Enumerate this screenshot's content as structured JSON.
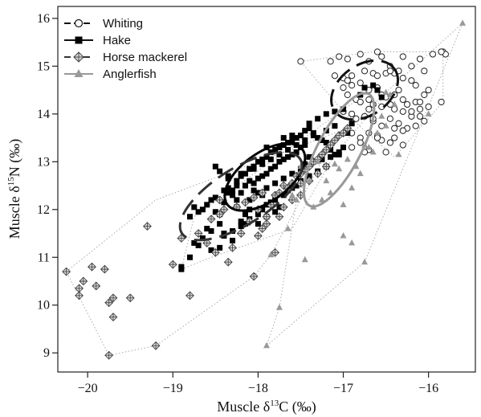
{
  "chart_data": {
    "type": "scatter",
    "xlabel": "Muscle δ13C (‰)",
    "xlabel_parts": {
      "prefix": "Muscle δ",
      "sup": "13",
      "suffix": "C (‰)"
    },
    "ylabel": "Muscle δ15N (‰)",
    "ylabel_parts": {
      "prefix": "Muscle δ",
      "sup": "15",
      "suffix": "N (‰)"
    },
    "xlim": [
      -20.35,
      -15.45
    ],
    "ylim": [
      8.6,
      16.25
    ],
    "xticks": [
      -20,
      -19,
      -18,
      -17,
      -16
    ],
    "xtick_labels": [
      "−20",
      "−19",
      "−18",
      "−17",
      "−16"
    ],
    "yticks": [
      9,
      10,
      11,
      12,
      13,
      14,
      15,
      16
    ],
    "ytick_labels": [
      "9",
      "10",
      "11",
      "12",
      "13",
      "14",
      "15",
      "16"
    ],
    "grid": false,
    "legend_position": "top-left",
    "colors": {
      "whiting": "#222222",
      "hake": "#000000",
      "horse_mackerel": "#555555",
      "anglerfish": "#999999",
      "hull": "#aaaaaa"
    },
    "series": [
      {
        "name": "Whiting",
        "marker": "open-circle",
        "ellipse": {
          "cx": -16.75,
          "cy": 14.5,
          "rx": 0.55,
          "ry": 0.38,
          "angle": 35,
          "style": "dashed",
          "color": "#111111"
        },
        "x": [
          -17.5,
          -17.15,
          -17.05,
          -16.95,
          -16.8,
          -16.7,
          -16.6,
          -16.55,
          -16.45,
          -16.4,
          -16.3,
          -16.2,
          -16.1,
          -16.05,
          -15.95,
          -15.85,
          -15.83,
          -15.85,
          -17.1,
          -17.0,
          -16.9,
          -16.75,
          -16.65,
          -16.6,
          -16.5,
          -16.45,
          -16.35,
          -16.3,
          -16.2,
          -16.15,
          -16.05,
          -16.0,
          -17.0,
          -16.9,
          -16.8,
          -16.7,
          -16.6,
          -16.55,
          -16.5,
          -16.4,
          -16.35,
          -16.3,
          -16.25,
          -16.15,
          -16.1,
          -16.95,
          -16.85,
          -16.8,
          -16.7,
          -16.65,
          -16.55,
          -16.45,
          -16.4,
          -16.3,
          -16.2,
          -16.1,
          -17.0,
          -16.9,
          -16.85,
          -16.75,
          -16.65,
          -16.55,
          -16.45,
          -16.35,
          -16.3,
          -16.25,
          -16.15,
          -16.05,
          -16.9,
          -16.8,
          -16.7,
          -16.6,
          -16.55,
          -16.45,
          -16.4,
          -16.3,
          -16.9,
          -16.8,
          -16.7,
          -16.6,
          -16.5,
          -16.4,
          -16.3,
          -16.2,
          -16.1,
          -16.0,
          -15.8,
          -15.85,
          -16.65,
          -16.75,
          -16.7,
          -16.95
        ],
        "y": [
          15.1,
          15.1,
          15.2,
          15.15,
          15.25,
          15.1,
          15.3,
          15.2,
          15.0,
          14.85,
          15.2,
          15.0,
          15.15,
          14.9,
          15.25,
          15.3,
          15.3,
          14.25,
          14.8,
          14.75,
          14.8,
          14.9,
          14.85,
          14.8,
          14.85,
          14.9,
          14.9,
          14.75,
          14.7,
          14.6,
          14.4,
          14.5,
          14.55,
          14.6,
          14.65,
          14.5,
          14.55,
          14.4,
          14.35,
          14.4,
          14.5,
          14.3,
          14.2,
          14.25,
          14.1,
          14.4,
          14.3,
          14.25,
          14.3,
          14.2,
          14.15,
          14.2,
          14.1,
          14.05,
          13.95,
          13.95,
          14.05,
          14.0,
          13.9,
          13.95,
          13.85,
          13.75,
          13.9,
          13.8,
          13.65,
          13.7,
          13.75,
          13.85,
          13.6,
          13.5,
          13.6,
          13.55,
          13.45,
          13.4,
          13.5,
          13.35,
          13.3,
          13.4,
          13.25,
          13.5,
          13.2,
          13.7,
          13.65,
          14.05,
          14.25,
          14.15,
          15.25,
          15.3,
          13.9,
          13.2,
          14.1,
          14.7
        ]
      },
      {
        "name": "Hake",
        "marker": "filled-square",
        "ellipse": {
          "cx": -17.92,
          "cy": 12.68,
          "rx": 0.7,
          "ry": 0.36,
          "angle": 36,
          "style": "solid",
          "color": "#000000"
        },
        "x": [
          -18.9,
          -18.9,
          -18.8,
          -18.75,
          -18.7,
          -18.65,
          -18.6,
          -18.55,
          -18.5,
          -18.45,
          -18.4,
          -18.35,
          -18.3,
          -18.25,
          -18.2,
          -18.15,
          -18.1,
          -18.05,
          -18.0,
          -17.95,
          -17.9,
          -17.85,
          -17.8,
          -17.75,
          -17.7,
          -17.65,
          -17.6,
          -17.55,
          -17.5,
          -17.45,
          -17.4,
          -17.35,
          -17.3,
          -17.25,
          -17.2,
          -17.15,
          -17.1,
          -17.05,
          -17.0,
          -16.95,
          -16.9,
          -18.6,
          -18.55,
          -18.5,
          -18.45,
          -18.4,
          -18.35,
          -18.3,
          -18.25,
          -18.2,
          -18.15,
          -18.1,
          -18.05,
          -18.0,
          -17.95,
          -17.9,
          -17.85,
          -17.8,
          -17.75,
          -17.7,
          -17.65,
          -17.6,
          -17.55,
          -17.5,
          -17.45,
          -17.4,
          -18.45,
          -18.4,
          -18.3,
          -18.2,
          -18.15,
          -18.1,
          -18.0,
          -17.95,
          -17.9,
          -17.85,
          -17.8,
          -17.7,
          -17.65,
          -17.6,
          -17.55,
          -17.5,
          -17.4,
          -17.3,
          -17.2,
          -18.25,
          -18.1,
          -18.0,
          -17.9,
          -17.8,
          -17.7,
          -17.6,
          -17.5,
          -17.45,
          -17.35,
          -17.25,
          -17.15,
          -17.05,
          -18.35,
          -18.2,
          -18.05,
          -17.95,
          -17.85,
          -17.75,
          -17.65,
          -17.55,
          -17.45,
          -17.35,
          -17.2,
          -17.1,
          -18.7,
          -18.75,
          -18.8,
          -18.55,
          -18.65,
          -18.4,
          -18.3,
          -18.2,
          -18.15,
          -18.1,
          -18.0,
          -17.9,
          -17.8,
          -18.1,
          -17.9,
          -17.7,
          -17.6,
          -17.4,
          -17.3,
          -17.2,
          -17.1,
          -17.0,
          -16.8,
          -16.75,
          -16.6,
          -16.55,
          -16.65,
          -17.75,
          -17.85,
          -17.95,
          -18.05,
          -18.15,
          -18.25,
          -18.35,
          -18.45,
          -18.5
        ],
        "y": [
          10.8,
          10.75,
          11.85,
          12.05,
          11.95,
          12.0,
          11.6,
          11.55,
          11.95,
          11.7,
          12.15,
          12.35,
          12.4,
          12.5,
          12.7,
          12.75,
          12.85,
          12.9,
          13.0,
          13.05,
          13.1,
          13.2,
          13.25,
          13.3,
          13.35,
          13.4,
          13.45,
          13.5,
          13.55,
          13.65,
          13.7,
          13.6,
          13.5,
          13.45,
          13.4,
          13.25,
          13.15,
          13.2,
          13.3,
          13.6,
          13.8,
          12.1,
          12.2,
          12.25,
          11.9,
          12.4,
          12.45,
          12.3,
          12.2,
          12.35,
          12.5,
          12.6,
          12.55,
          12.65,
          12.7,
          12.75,
          12.85,
          12.9,
          13.0,
          13.05,
          13.1,
          13.15,
          13.2,
          13.3,
          13.35,
          13.1,
          11.2,
          11.5,
          11.55,
          11.65,
          11.7,
          11.8,
          11.9,
          12.0,
          12.1,
          12.15,
          12.2,
          12.3,
          12.4,
          12.45,
          12.5,
          12.6,
          12.7,
          12.8,
          12.9,
          12.05,
          12.2,
          12.35,
          12.45,
          12.55,
          12.65,
          12.75,
          12.85,
          12.95,
          13.0,
          13.05,
          13.1,
          13.15,
          12.65,
          12.75,
          12.85,
          12.95,
          13.05,
          13.15,
          13.25,
          13.35,
          13.45,
          13.55,
          13.65,
          13.75,
          11.25,
          11.3,
          11.0,
          11.15,
          11.4,
          11.45,
          11.35,
          11.75,
          11.9,
          12.0,
          11.7,
          11.85,
          11.95,
          12.85,
          13.3,
          13.5,
          13.55,
          13.8,
          13.9,
          14.0,
          14.05,
          14.1,
          14.4,
          14.55,
          14.5,
          14.35,
          14.6,
          12.05,
          12.15,
          12.3,
          12.4,
          12.5,
          12.6,
          12.7,
          12.8,
          12.9
        ]
      },
      {
        "name": "Horse mackerel",
        "marker": "crossed-diamond",
        "ellipse": {
          "cx": -18.2,
          "cy": 12.28,
          "rx": 1.05,
          "ry": 0.42,
          "angle": 32,
          "style": "dashed",
          "color": "#333333"
        },
        "x": [
          -20.25,
          -20.1,
          -20.1,
          -20.05,
          -19.95,
          -19.9,
          -19.8,
          -19.75,
          -19.7,
          -19.7,
          -19.5,
          -19.75,
          -19.2,
          -18.8,
          -19.0,
          -19.3,
          -18.9,
          -18.7,
          -18.6,
          -18.5,
          -18.35,
          -18.3,
          -18.2,
          -18.1,
          -18.0,
          -17.9,
          -17.85,
          -17.8,
          -17.75,
          -17.7,
          -17.6,
          -17.55,
          -17.5,
          -17.45,
          -17.4,
          -17.35,
          -17.3,
          -17.25,
          -17.2,
          -17.15,
          -17.1,
          -17.05,
          -17.0,
          -16.95,
          -18.55,
          -18.45,
          -18.4,
          -18.25,
          -18.15,
          -18.05,
          -17.95,
          -17.65,
          -17.5,
          -17.4,
          -17.3,
          -17.2,
          -18.0,
          -17.95,
          -17.9,
          -17.75,
          -17.7,
          -17.6,
          -17.5,
          -17.8,
          -18.05,
          -18.45
        ],
        "y": [
          10.7,
          10.2,
          10.35,
          10.5,
          10.8,
          10.4,
          10.75,
          10.05,
          10.15,
          9.75,
          10.15,
          8.95,
          9.15,
          10.2,
          10.85,
          11.65,
          11.4,
          11.5,
          11.3,
          11.1,
          10.9,
          11.2,
          11.5,
          11.75,
          12.0,
          11.85,
          12.1,
          12.3,
          12.35,
          12.5,
          12.55,
          12.7,
          12.75,
          12.85,
          12.9,
          13.0,
          13.05,
          13.15,
          13.25,
          13.35,
          13.45,
          13.55,
          13.6,
          13.7,
          11.8,
          11.9,
          12.0,
          12.05,
          12.15,
          12.25,
          12.35,
          12.45,
          12.55,
          12.6,
          12.75,
          12.9,
          11.45,
          11.6,
          11.7,
          11.85,
          12.05,
          12.2,
          12.3,
          11.1,
          10.6,
          12.2
        ]
      },
      {
        "name": "Anglerfish",
        "marker": "filled-triangle",
        "ellipse": {
          "cx": -17.05,
          "cy": 13.25,
          "rx": 0.95,
          "ry": 0.32,
          "angle": 62,
          "style": "solid",
          "color": "#999999"
        },
        "x": [
          -15.6,
          -16.0,
          -16.35,
          -16.75,
          -16.9,
          -17.0,
          -17.15,
          -17.1,
          -17.3,
          -17.4,
          -17.55,
          -17.65,
          -17.75,
          -17.9,
          -17.85,
          -17.6,
          -17.5,
          -17.2,
          -17.0,
          -16.9,
          -16.8,
          -16.7,
          -16.6,
          -16.55,
          -16.4,
          -16.45,
          -16.5,
          -17.25,
          -17.35,
          -17.45,
          -17.05,
          -16.95,
          -16.85,
          -16.75,
          -16.65,
          -16.5
        ],
        "y": [
          15.9,
          14.0,
          13.15,
          10.9,
          11.3,
          11.45,
          12.35,
          12.95,
          13.0,
          12.6,
          12.2,
          11.6,
          9.95,
          9.15,
          11.05,
          12.3,
          12.9,
          12.6,
          12.1,
          12.45,
          12.75,
          13.3,
          13.6,
          13.95,
          14.2,
          14.4,
          14.45,
          12.2,
          12.05,
          10.95,
          12.85,
          13.05,
          12.9,
          13.35,
          13.2,
          13.75
        ]
      }
    ],
    "hulls": [
      {
        "series": "Whiting",
        "x": [
          -17.5,
          -16.65,
          -15.83,
          -15.83,
          -16.4,
          -17.0
        ],
        "y": [
          15.1,
          15.3,
          15.3,
          14.25,
          13.1,
          14.05
        ]
      },
      {
        "series": "Hake",
        "x": [
          -18.9,
          -18.75,
          -16.6,
          -16.55,
          -17.1,
          -17.6,
          -18.55
        ],
        "y": [
          10.75,
          11.85,
          14.6,
          14.3,
          13.15,
          11.6,
          11.0
        ]
      },
      {
        "series": "Horse mackerel",
        "x": [
          -20.25,
          -19.2,
          -16.95,
          -17.15,
          -17.85,
          -18.05,
          -19.2,
          -19.75
        ],
        "y": [
          10.7,
          12.2,
          13.7,
          13.35,
          11.05,
          10.6,
          9.15,
          8.95
        ]
      },
      {
        "series": "Anglerfish",
        "x": [
          -15.6,
          -16.75,
          -17.9,
          -17.75,
          -17.55,
          -17.35,
          -16.5
        ],
        "y": [
          15.9,
          10.9,
          9.15,
          9.95,
          12.2,
          13.0,
          14.45
        ]
      }
    ],
    "legend_entries": [
      "Whiting",
      "Hake",
      "Horse mackerel",
      "Anglerfish"
    ]
  }
}
